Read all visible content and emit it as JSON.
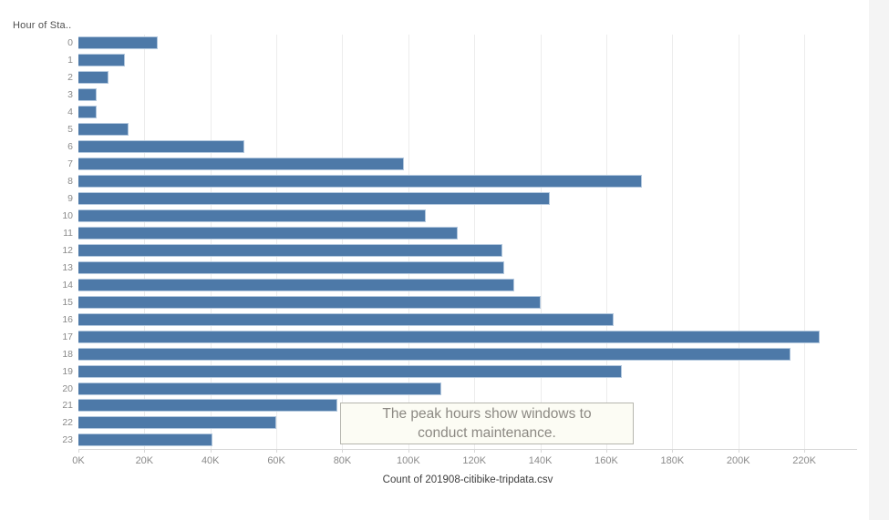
{
  "page": {
    "field_header": "Hour of Sta..",
    "right_strip_color": "#f4f4f4",
    "background_color": "#ffffff"
  },
  "chart_data": {
    "type": "bar",
    "orientation": "horizontal",
    "title": "Hour of Sta..",
    "xlabel": "Count of 201908-citibike-tripdata.csv",
    "ylabel": "Hour of Sta..",
    "categories": [
      "0",
      "1",
      "2",
      "3",
      "4",
      "5",
      "6",
      "7",
      "8",
      "9",
      "10",
      "11",
      "12",
      "13",
      "14",
      "15",
      "16",
      "17",
      "18",
      "19",
      "20",
      "21",
      "22",
      "23"
    ],
    "values": [
      24100,
      14200,
      9000,
      5500,
      5600,
      15200,
      50300,
      98700,
      170700,
      142800,
      105300,
      115000,
      128600,
      129000,
      132100,
      140200,
      162200,
      224600,
      215800,
      164600,
      110100,
      78400,
      60000,
      40500
    ],
    "xlim": [
      0,
      236000
    ],
    "grid": "vertical-light",
    "legend": "none",
    "x_ticks": [
      {
        "value": 0,
        "label": "0K"
      },
      {
        "value": 20000,
        "label": "20K"
      },
      {
        "value": 40000,
        "label": "40K"
      },
      {
        "value": 60000,
        "label": "60K"
      },
      {
        "value": 80000,
        "label": "80K"
      },
      {
        "value": 100000,
        "label": "100K"
      },
      {
        "value": 120000,
        "label": "120K"
      },
      {
        "value": 140000,
        "label": "140K"
      },
      {
        "value": 160000,
        "label": "160K"
      },
      {
        "value": 180000,
        "label": "180K"
      },
      {
        "value": 200000,
        "label": "200K"
      },
      {
        "value": 220000,
        "label": "220K"
      }
    ],
    "bar_color": "#4d79a8",
    "bar_border_color": "#b3c8de",
    "annotation": {
      "lines": [
        "The peak hours show windows to",
        "conduct maintenance."
      ],
      "bg_color": "#fcfcf4",
      "border_color": "#b6b6ae",
      "text_color": "#8c8983"
    }
  }
}
